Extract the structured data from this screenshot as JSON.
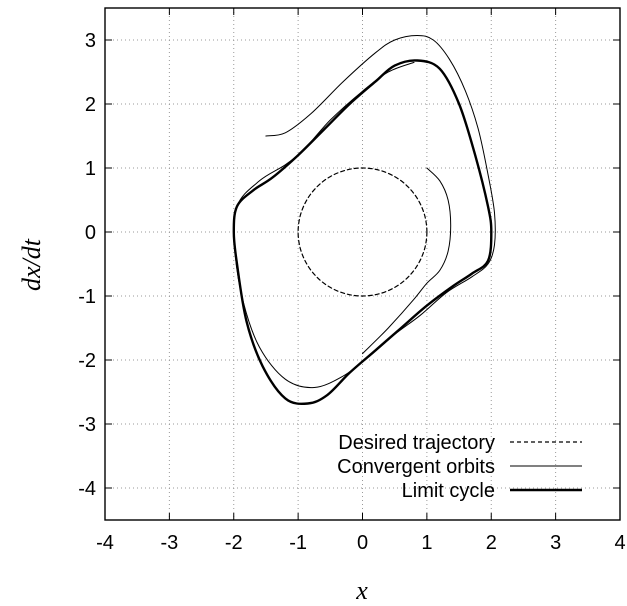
{
  "chart_data": {
    "type": "line",
    "title": "",
    "xlabel": "x",
    "ylabel": "dx/dt",
    "xlim": [
      -4,
      4
    ],
    "ylim": [
      -4.5,
      3.5
    ],
    "grid": true,
    "legend_position": "bottom-right",
    "x_ticks": [
      "-4",
      "-3",
      "-2",
      "-1",
      "0",
      "1",
      "2",
      "3",
      "4"
    ],
    "y_ticks": [
      "-4",
      "-3",
      "-2",
      "-1",
      "0",
      "1",
      "2",
      "3"
    ],
    "x_tick_values": [
      -4,
      -3,
      -2,
      -1,
      0,
      1,
      2,
      3,
      4
    ],
    "y_tick_values": [
      -4,
      -3,
      -2,
      -1,
      0,
      1,
      2,
      3
    ],
    "series": [
      {
        "name": "Desired trajectory",
        "style": "dashed",
        "color": "#000000",
        "points": [
          [
            1.0,
            0.0
          ],
          [
            0.966,
            0.259
          ],
          [
            0.866,
            0.5
          ],
          [
            0.707,
            0.707
          ],
          [
            0.5,
            0.866
          ],
          [
            0.259,
            0.966
          ],
          [
            0.0,
            1.0
          ],
          [
            -0.259,
            0.966
          ],
          [
            -0.5,
            0.866
          ],
          [
            -0.707,
            0.707
          ],
          [
            -0.866,
            0.5
          ],
          [
            -0.966,
            0.259
          ],
          [
            -1.0,
            0.0
          ],
          [
            -0.966,
            -0.259
          ],
          [
            -0.866,
            -0.5
          ],
          [
            -0.707,
            -0.707
          ],
          [
            -0.5,
            -0.866
          ],
          [
            -0.259,
            -0.966
          ],
          [
            0.0,
            -1.0
          ],
          [
            0.259,
            -0.966
          ],
          [
            0.5,
            -0.866
          ],
          [
            0.707,
            -0.707
          ],
          [
            0.866,
            -0.5
          ],
          [
            0.966,
            -0.259
          ],
          [
            1.0,
            0.0
          ]
        ]
      },
      {
        "name": "Convergent orbits",
        "style": "thin",
        "color": "#000000",
        "paths": [
          [
            [
              -1.5,
              1.5
            ],
            [
              -1.2,
              1.55
            ],
            [
              -0.8,
              1.85
            ],
            [
              -0.3,
              2.35
            ],
            [
              0.2,
              2.8
            ],
            [
              0.5,
              3.0
            ],
            [
              0.85,
              3.07
            ],
            [
              1.1,
              3.0
            ],
            [
              1.35,
              2.7
            ],
            [
              1.6,
              2.2
            ],
            [
              1.8,
              1.6
            ],
            [
              1.95,
              0.9
            ],
            [
              2.05,
              0.3
            ],
            [
              2.05,
              -0.2
            ],
            [
              1.95,
              -0.5
            ],
            [
              1.7,
              -0.7
            ],
            [
              1.3,
              -0.95
            ],
            [
              0.9,
              -1.3
            ],
            [
              0.5,
              -1.6
            ],
            [
              0.1,
              -1.95
            ],
            [
              -0.3,
              -2.25
            ],
            [
              -0.75,
              -2.43
            ],
            [
              -1.2,
              -2.3
            ],
            [
              -1.6,
              -1.8
            ],
            [
              -1.85,
              -1.1
            ],
            [
              -1.98,
              -0.3
            ],
            [
              -1.95,
              0.4
            ],
            [
              -1.6,
              0.8
            ],
            [
              -1.2,
              1.05
            ],
            [
              -0.9,
              1.3
            ],
            [
              -0.5,
              1.75
            ],
            [
              0.0,
              2.2
            ],
            [
              0.4,
              2.5
            ],
            [
              0.8,
              2.65
            ]
          ],
          [
            [
              1.0,
              1.0
            ],
            [
              1.2,
              0.8
            ],
            [
              1.33,
              0.5
            ],
            [
              1.37,
              0.1
            ],
            [
              1.33,
              -0.3
            ],
            [
              1.2,
              -0.6
            ],
            [
              1.0,
              -0.8
            ],
            [
              0.8,
              -1.05
            ],
            [
              0.4,
              -1.5
            ],
            [
              0.0,
              -1.9
            ]
          ]
        ]
      },
      {
        "name": "Limit cycle",
        "style": "thick",
        "color": "#000000",
        "points": [
          [
            0.85,
            2.68
          ],
          [
            1.2,
            2.55
          ],
          [
            1.5,
            2.0
          ],
          [
            1.75,
            1.2
          ],
          [
            1.95,
            0.4
          ],
          [
            2.0,
            0.0
          ],
          [
            1.95,
            -0.45
          ],
          [
            1.7,
            -0.65
          ],
          [
            1.4,
            -0.85
          ],
          [
            1.0,
            -1.15
          ],
          [
            0.6,
            -1.5
          ],
          [
            0.2,
            -1.85
          ],
          [
            -0.2,
            -2.2
          ],
          [
            -0.55,
            -2.55
          ],
          [
            -0.85,
            -2.68
          ],
          [
            -1.2,
            -2.6
          ],
          [
            -1.55,
            -2.1
          ],
          [
            -1.8,
            -1.4
          ],
          [
            -1.95,
            -0.5
          ],
          [
            -2.0,
            0.0
          ],
          [
            -1.95,
            0.4
          ],
          [
            -1.7,
            0.65
          ],
          [
            -1.4,
            0.85
          ],
          [
            -1.0,
            1.2
          ],
          [
            -0.6,
            1.6
          ],
          [
            -0.2,
            2.0
          ],
          [
            0.2,
            2.35
          ],
          [
            0.5,
            2.6
          ],
          [
            0.85,
            2.68
          ]
        ]
      }
    ]
  }
}
